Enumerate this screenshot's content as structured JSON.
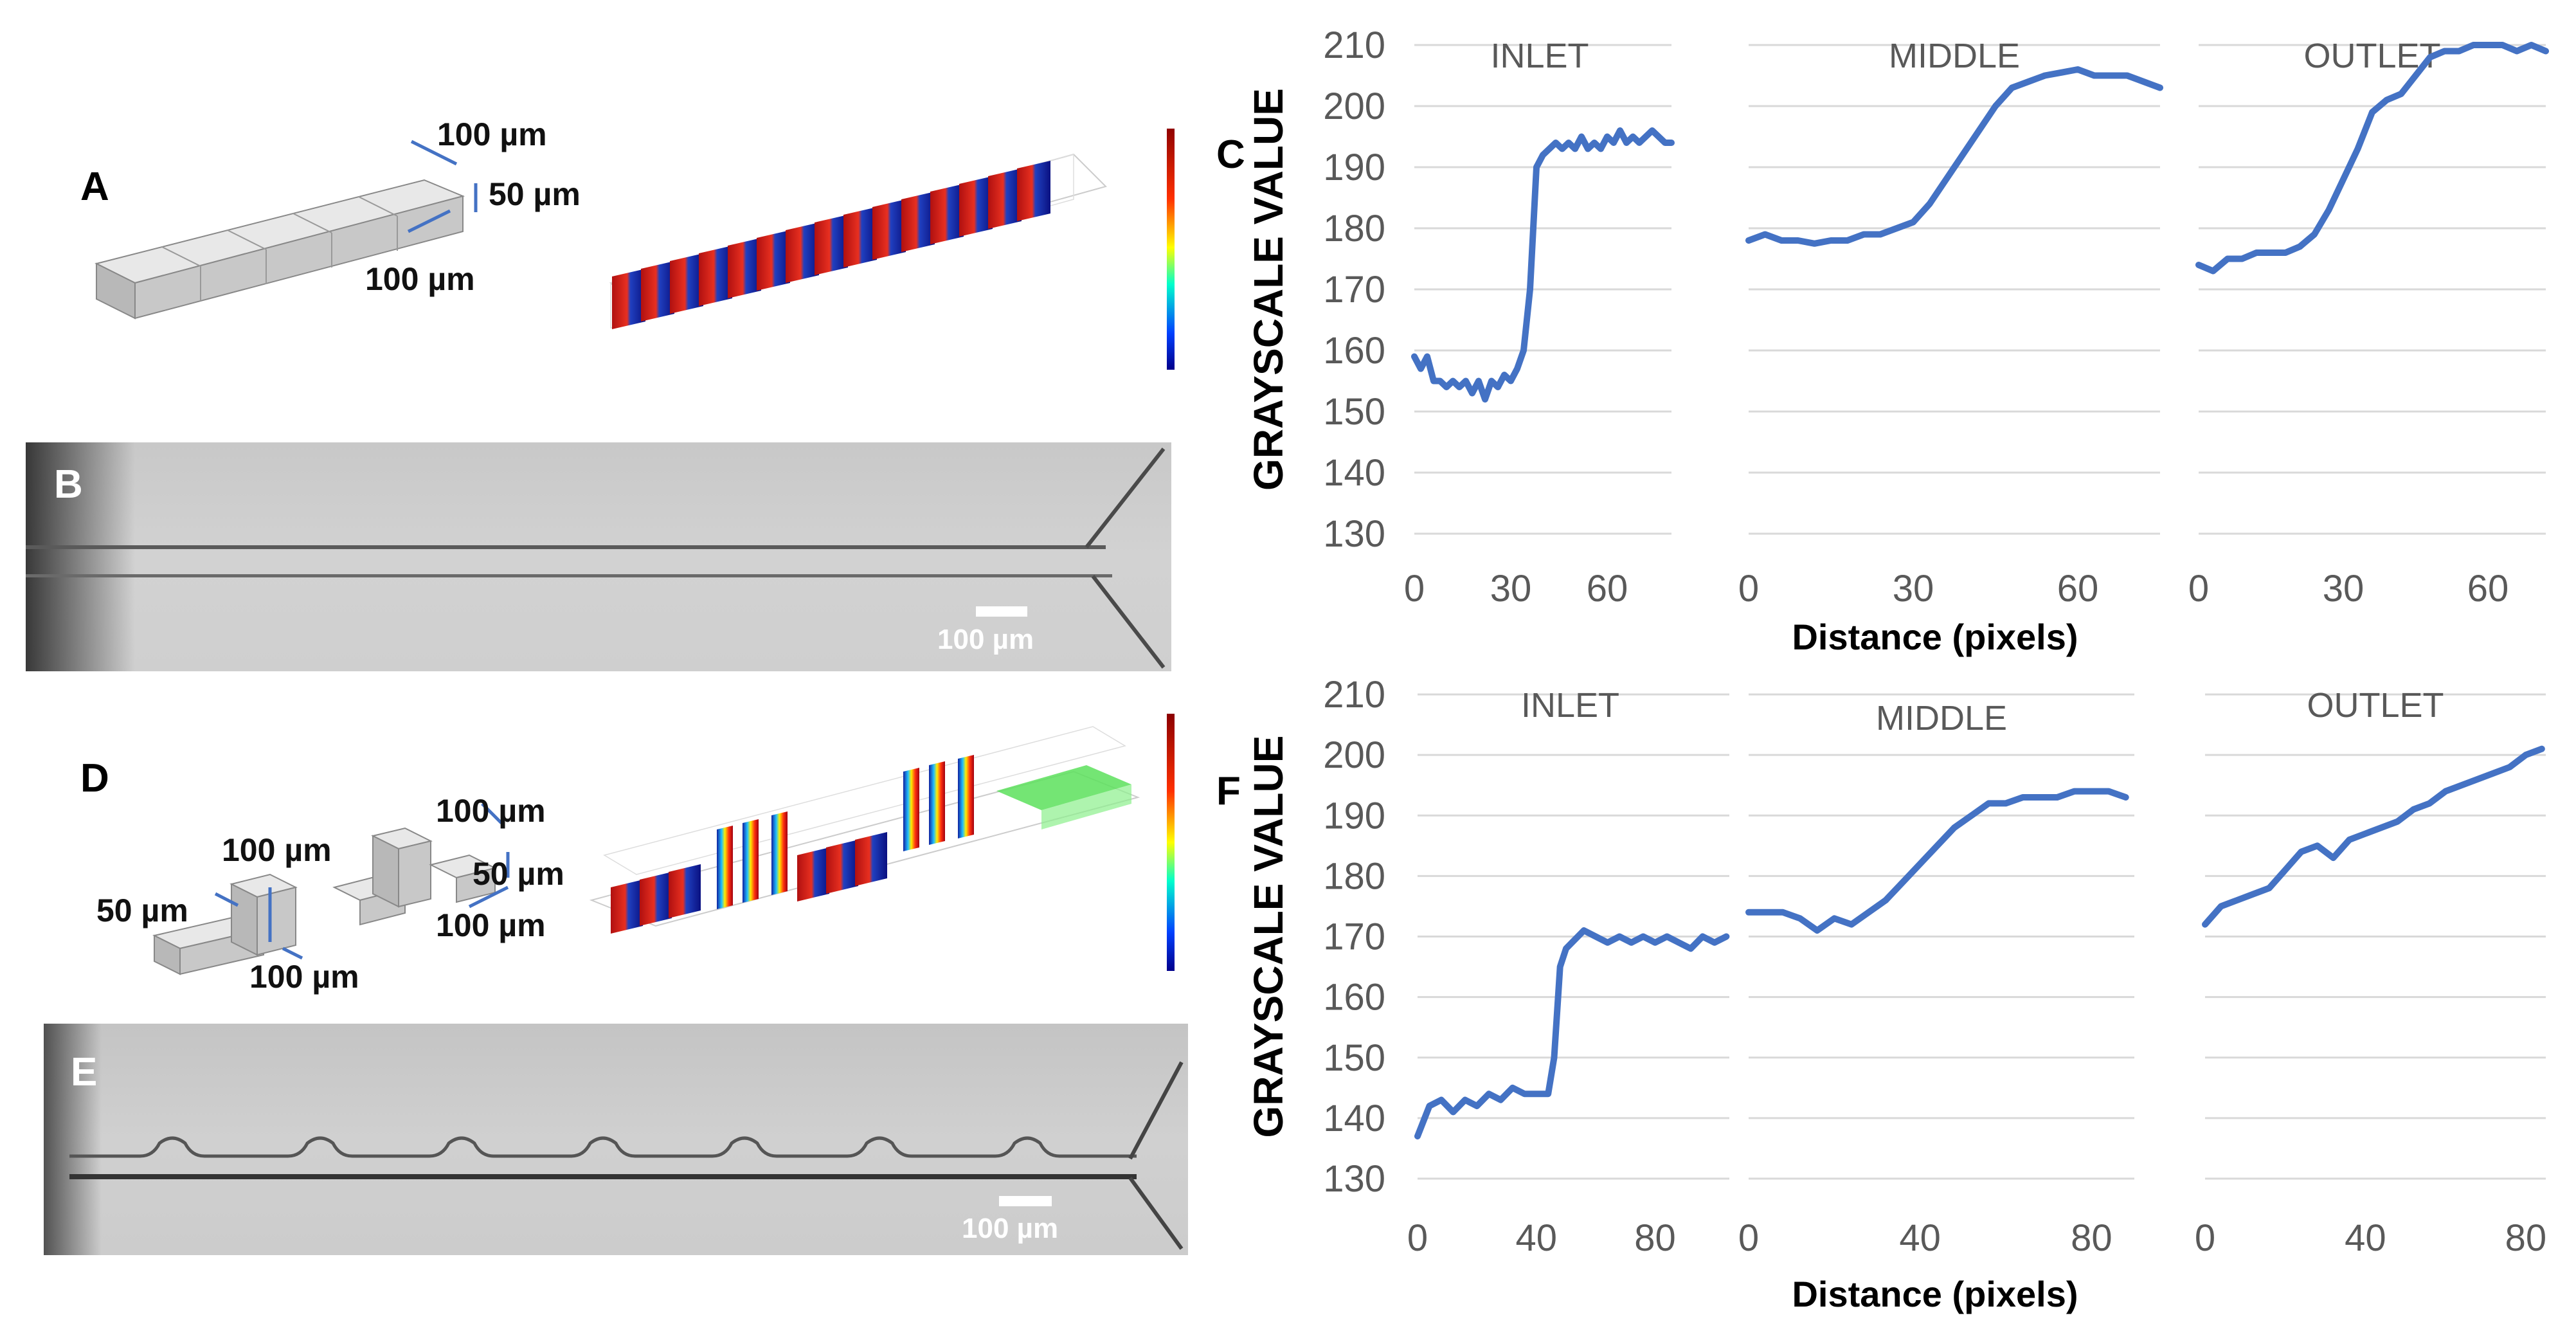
{
  "panels": {
    "a": {
      "letter": "A",
      "dim_top": "100 µm",
      "dim_side": "50 µm",
      "dim_bottom": "100 µm"
    },
    "b": {
      "letter": "B",
      "scale_bar": "100 µm"
    },
    "d": {
      "letter": "D",
      "dim_top_right": "100 µm",
      "dim_tall": "100 µm",
      "dim_right_mid": "50 µm",
      "dim_left": "50 µm",
      "dim_bottom_right": "100 µm",
      "dim_bottom": "100 µm"
    },
    "e": {
      "letter": "E",
      "scale_bar": "100 µm"
    }
  },
  "colors": {
    "series": "#4472c4",
    "grid": "#d9d9d9",
    "text": "#595959"
  },
  "chart_data": [
    {
      "group": "C",
      "type": "line",
      "ylabel": "GRAYSCALE VALUE",
      "xlabel": "Distance (pixels)",
      "yticks": [
        130,
        140,
        150,
        160,
        170,
        180,
        190,
        200,
        210
      ],
      "ylim": [
        130,
        210
      ],
      "subplots": [
        {
          "title": "INLET",
          "xlim": [
            0,
            80
          ],
          "xticks": [
            0,
            30,
            60
          ],
          "x": [
            0,
            2,
            4,
            6,
            8,
            10,
            12,
            14,
            16,
            18,
            20,
            22,
            24,
            26,
            28,
            30,
            32,
            34,
            36,
            38,
            40,
            42,
            44,
            46,
            48,
            50,
            52,
            54,
            56,
            58,
            60,
            62,
            64,
            66,
            68,
            70,
            72,
            74,
            76,
            78,
            80
          ],
          "y": [
            159,
            157,
            159,
            155,
            155,
            154,
            155,
            154,
            155,
            153,
            155,
            152,
            155,
            154,
            156,
            155,
            157,
            160,
            170,
            190,
            192,
            193,
            194,
            193,
            194,
            193,
            195,
            193,
            194,
            193,
            195,
            194,
            196,
            194,
            195,
            194,
            195,
            196,
            195,
            194,
            194
          ]
        },
        {
          "title": "MIDDLE",
          "xlim": [
            0,
            75
          ],
          "xticks": [
            0,
            30,
            60
          ],
          "x": [
            0,
            3,
            6,
            9,
            12,
            15,
            18,
            21,
            24,
            27,
            30,
            33,
            36,
            39,
            42,
            45,
            48,
            51,
            54,
            57,
            60,
            63,
            66,
            69,
            72,
            75
          ],
          "y": [
            178,
            179,
            178,
            178,
            177.5,
            178,
            178,
            179,
            179,
            180,
            181,
            184,
            188,
            192,
            196,
            200,
            203,
            204,
            205,
            205.5,
            206,
            205,
            205,
            205,
            204,
            203
          ]
        },
        {
          "title": "OUTLET",
          "xlim": [
            0,
            72
          ],
          "xticks": [
            0,
            30,
            60
          ],
          "x": [
            0,
            3,
            6,
            9,
            12,
            15,
            18,
            21,
            24,
            27,
            30,
            33,
            36,
            39,
            42,
            45,
            48,
            51,
            54,
            57,
            60,
            63,
            66,
            69,
            72
          ],
          "y": [
            174,
            173,
            175,
            175,
            176,
            176,
            176,
            177,
            179,
            183,
            188,
            193,
            199,
            201,
            202,
            205,
            208,
            209,
            209,
            210,
            210,
            210,
            209,
            210,
            209
          ]
        }
      ]
    },
    {
      "group": "F",
      "type": "line",
      "ylabel": "GRAYSCALE VALUE",
      "xlabel": "Distance (pixels)",
      "yticks": [
        130,
        140,
        150,
        160,
        170,
        180,
        190,
        200,
        210
      ],
      "ylim": [
        130,
        210
      ],
      "subplots": [
        {
          "title": "INLET",
          "xlim": [
            0,
            105
          ],
          "xticks": [
            0,
            40,
            80
          ],
          "x": [
            0,
            4,
            8,
            12,
            16,
            20,
            24,
            28,
            32,
            36,
            40,
            44,
            46,
            48,
            50,
            52,
            56,
            60,
            64,
            68,
            72,
            76,
            80,
            84,
            88,
            92,
            96,
            100,
            104
          ],
          "y": [
            137,
            142,
            143,
            141,
            143,
            142,
            144,
            143,
            145,
            144,
            144,
            144,
            150,
            165,
            168,
            169,
            171,
            170,
            169,
            170,
            169,
            170,
            169,
            170,
            169,
            168,
            170,
            169,
            170
          ]
        },
        {
          "title": "MIDDLE",
          "xlim": [
            0,
            90
          ],
          "xticks": [
            0,
            40,
            80
          ],
          "x": [
            0,
            4,
            8,
            12,
            16,
            20,
            24,
            28,
            32,
            36,
            40,
            44,
            48,
            52,
            56,
            60,
            64,
            68,
            72,
            76,
            80,
            84,
            88
          ],
          "y": [
            174,
            174,
            174,
            173,
            171,
            173,
            172,
            174,
            176,
            179,
            182,
            185,
            188,
            190,
            192,
            192,
            193,
            193,
            193,
            194,
            194,
            194,
            193
          ]
        },
        {
          "title": "OUTLET",
          "xlim": [
            0,
            85
          ],
          "xticks": [
            0,
            40,
            80
          ],
          "x": [
            0,
            4,
            8,
            12,
            16,
            20,
            24,
            28,
            32,
            36,
            40,
            44,
            48,
            52,
            56,
            60,
            64,
            68,
            72,
            76,
            80,
            84
          ],
          "y": [
            172,
            175,
            176,
            177,
            178,
            181,
            184,
            185,
            183,
            186,
            187,
            188,
            189,
            191,
            192,
            194,
            195,
            196,
            197,
            198,
            200,
            201
          ]
        }
      ]
    }
  ]
}
